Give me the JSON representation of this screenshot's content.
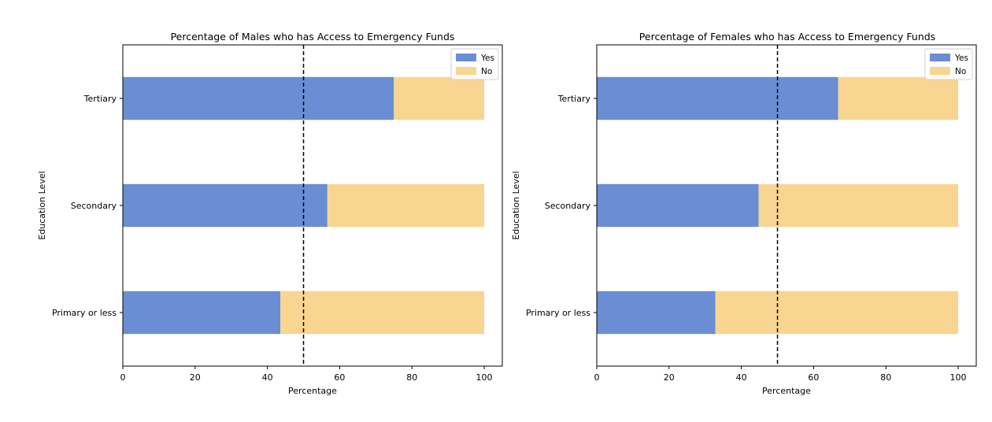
{
  "colors": {
    "yes": "#6a8dd4",
    "no": "#f8d591",
    "reference_line": "#000000"
  },
  "chart_data": [
    {
      "type": "bar",
      "orientation": "horizontal",
      "stacked": true,
      "title": "Percentage of Males who has Access to Emergency Funds",
      "xlabel": "Percentage",
      "ylabel": "Education Level",
      "xlim": [
        0,
        105
      ],
      "xticks": [
        0,
        20,
        40,
        60,
        80,
        100
      ],
      "categories": [
        "Primary or less",
        "Secondary",
        "Tertiary"
      ],
      "series": [
        {
          "name": "Yes",
          "values": [
            43.6,
            56.6,
            75.0
          ]
        },
        {
          "name": "No",
          "values": [
            56.4,
            43.4,
            25.0
          ]
        }
      ],
      "reference_line_x": 50,
      "legend": "top-right",
      "grid": false
    },
    {
      "type": "bar",
      "orientation": "horizontal",
      "stacked": true,
      "title": "Percentage of Females who has Access to Emergency Funds",
      "xlabel": "Percentage",
      "ylabel": "Education Level",
      "xlim": [
        0,
        105
      ],
      "xticks": [
        0,
        20,
        40,
        60,
        80,
        100
      ],
      "categories": [
        "Primary or less",
        "Secondary",
        "Tertiary"
      ],
      "series": [
        {
          "name": "Yes",
          "values": [
            32.8,
            44.8,
            66.8
          ]
        },
        {
          "name": "No",
          "values": [
            67.2,
            55.2,
            33.2
          ]
        }
      ],
      "reference_line_x": 50,
      "legend": "top-right",
      "grid": false
    }
  ]
}
